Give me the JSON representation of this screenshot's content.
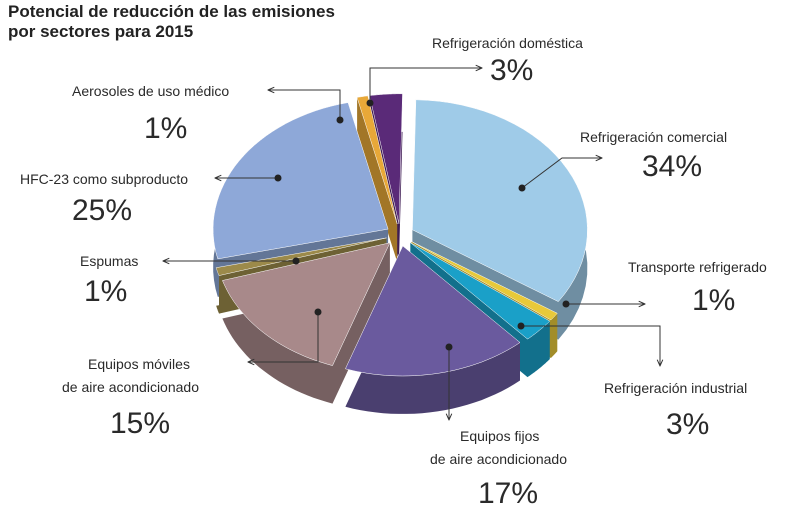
{
  "title": "Potencial de reducción de las emisiones por sectores para 2015",
  "chart_data": {
    "type": "pie",
    "title": "Potencial de reducción de las emisiones por sectores para 2015",
    "slices": [
      {
        "name": "Refrigeración comercial",
        "value": 34,
        "label": "34%",
        "color": "#9fcbe8"
      },
      {
        "name": "Transporte refrigerado",
        "value": 1,
        "label": "1%",
        "color": "#e8c93a"
      },
      {
        "name": "Refrigeración industrial",
        "value": 3,
        "label": "3%",
        "color": "#1aa0c8"
      },
      {
        "name": "Equipos fijos de aire acondicionado",
        "value": 17,
        "label": "17%",
        "color": "#6a5a9e"
      },
      {
        "name": "Equipos móviles de aire acondicionado",
        "value": 15,
        "label": "15%",
        "color": "#a8898a"
      },
      {
        "name": "Espumas",
        "value": 1,
        "label": "1%",
        "color": "#9c8a4a"
      },
      {
        "name": "HFC-23 como subproducto",
        "value": 25,
        "label": "25%",
        "color": "#8ea8d8"
      },
      {
        "name": "Aerosoles de uso médico",
        "value": 1,
        "label": "1%",
        "color": "#e8a838"
      },
      {
        "name": "Refrigeración doméstica",
        "value": 3,
        "label": "3%",
        "color": "#5a2a78"
      }
    ],
    "legend": "none"
  },
  "labels": {
    "comercial_a": "Refrigeración comercial",
    "transporte_a": "Transporte refrigerado",
    "industrial_a": "Refrigeración industrial",
    "fijos_a": "Equipos fijos",
    "fijos_b": "de aire acondicionado",
    "moviles_a": "Equipos móviles",
    "moviles_b": "de aire acondicionado",
    "espumas_a": "Espumas",
    "hfc_a": "HFC-23 como subproducto",
    "aerosoles_a": "Aerosoles de uso médico",
    "domestica_a": "Refrigeración doméstica"
  }
}
